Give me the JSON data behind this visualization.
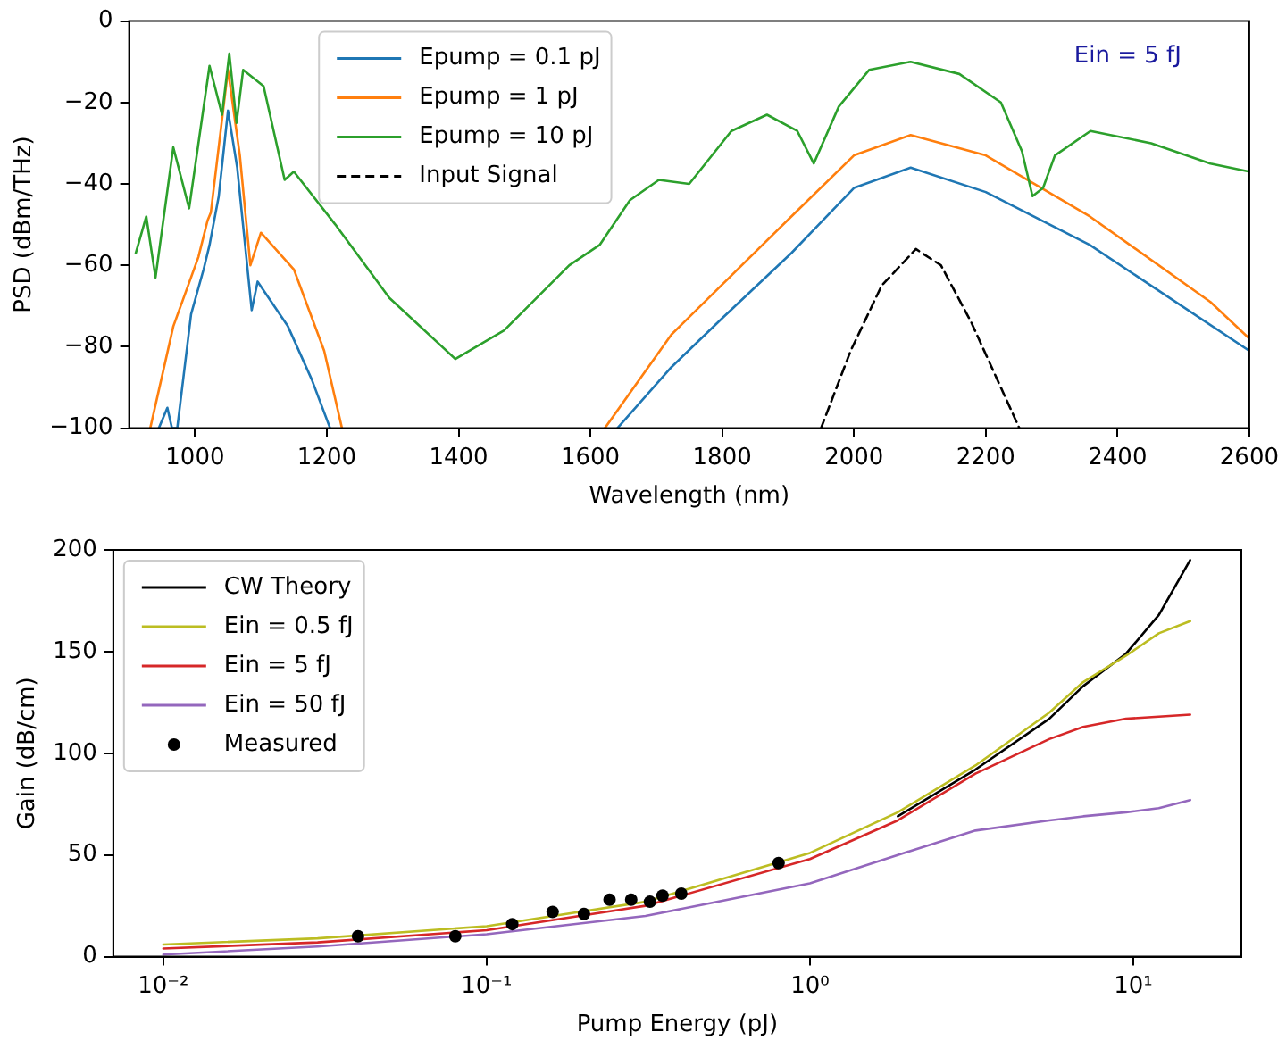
{
  "chart_data": [
    {
      "type": "line",
      "xlabel": "Wavelength (nm)",
      "ylabel": "PSD (dBm/THz)",
      "xlim": [
        900,
        2600
      ],
      "xticks": [
        1000,
        1200,
        1400,
        1600,
        1800,
        2000,
        2200,
        2400,
        2600
      ],
      "ylim": [
        -100,
        0
      ],
      "yticks": [
        -100,
        -80,
        -60,
        -40,
        -20,
        0
      ],
      "legend": "top",
      "annotations": [
        "Ein = 5 fJ"
      ],
      "series": [
        {
          "name": "Epump = 0.1 pJ",
          "color": "#1f77b4",
          "x": [
            945,
            958,
            965,
            973,
            994,
            1013,
            1022,
            1036,
            1050,
            1064,
            1086,
            1095,
            1141,
            1177,
            1205,
            1400,
            1641,
            1723,
            1800,
            1905,
            2000,
            2086,
            2200,
            2358,
            2600
          ],
          "values": [
            -100,
            -95,
            -100,
            -100,
            -72,
            -61,
            -55,
            -43,
            -22,
            -36,
            -71,
            -64,
            -75,
            -88,
            -100,
            null,
            -100,
            -85,
            -73,
            -57,
            -41,
            -36,
            -42,
            -55,
            -81
          ]
        },
        {
          "name": "Epump = 1 pJ",
          "color": "#ff7f0e",
          "x": [
            932,
            967,
            1005,
            1019,
            1024,
            1050,
            1068,
            1084,
            1100,
            1150,
            1196,
            1223,
            1400,
            1622,
            1723,
            1905,
            2000,
            2086,
            2200,
            2358,
            2541,
            2600
          ],
          "values": [
            -100,
            -75,
            -58,
            -49,
            -47,
            -12,
            -33,
            -60,
            -52,
            -61,
            -81,
            -100,
            null,
            -100,
            -77,
            -48,
            -33,
            -28,
            -33,
            -48,
            -69,
            -78
          ]
        },
        {
          "name": "Epump = 10 pJ",
          "color": "#2ca02c",
          "x": [
            910,
            926,
            940,
            967,
            991,
            1022,
            1041,
            1052,
            1063,
            1073,
            1104,
            1136,
            1150,
            1213,
            1295,
            1395,
            1469,
            1568,
            1614,
            1660,
            1704,
            1750,
            1814,
            1868,
            1914,
            1939,
            1977,
            2023,
            2086,
            2160,
            2223,
            2255,
            2271,
            2287,
            2305,
            2359,
            2451,
            2541,
            2600
          ],
          "values": [
            -57,
            -48,
            -63,
            -31,
            -46,
            -11,
            -23,
            -8,
            -25,
            -12,
            -16,
            -39,
            -37,
            -50,
            -68,
            -83,
            -76,
            -60,
            -55,
            -44,
            -39,
            -40,
            -27,
            -23,
            -27,
            -35,
            -21,
            -12,
            -10,
            -13,
            -20,
            -32,
            -43,
            -41,
            -33,
            -27,
            -30,
            -35,
            -37
          ]
        },
        {
          "name": "Input Signal",
          "color": "#000000",
          "line_style": "dashed",
          "x": [
            1950,
            1995,
            2042,
            2094,
            2132,
            2178,
            2251
          ],
          "values": [
            -100,
            -81,
            -65,
            -56,
            -60,
            -74,
            -100
          ]
        }
      ]
    },
    {
      "type": "line",
      "xlabel": "Pump Energy (pJ)",
      "ylabel": "Gain (dB/cm)",
      "log": "x",
      "xlim": [
        0.007,
        21.6
      ],
      "xticks": [
        {
          "value": 0.01,
          "label": "10⁻²"
        },
        {
          "value": 0.1,
          "label": "10⁻¹"
        },
        {
          "value": 1,
          "label": "10⁰"
        },
        {
          "value": 10,
          "label": "10¹"
        }
      ],
      "ylim": [
        0,
        200
      ],
      "yticks": [
        0,
        50,
        100,
        150,
        200
      ],
      "legend": "top left",
      "series": [
        {
          "name": "CW Theory",
          "color": "#000000",
          "x": [
            1.87,
            3.25,
            5.5,
            7,
            9.5,
            12,
            15
          ],
          "values": [
            69,
            92,
            117,
            133,
            149,
            168,
            195
          ]
        },
        {
          "name": "Ein = 0.5 fJ",
          "color": "#bcbd22",
          "x": [
            0.01,
            0.03,
            0.1,
            0.31,
            1,
            1.87,
            3.25,
            5.5,
            7,
            9.5,
            12,
            15
          ],
          "values": [
            6,
            9,
            15,
            27,
            51,
            71,
            94,
            120,
            135,
            148,
            159,
            165
          ]
        },
        {
          "name": "Ein = 5 fJ",
          "color": "#d62728",
          "x": [
            0.01,
            0.03,
            0.1,
            0.31,
            1,
            1.87,
            3.25,
            5.5,
            7,
            9.5,
            12,
            15
          ],
          "values": [
            4,
            7,
            13,
            25,
            48,
            67,
            90,
            107,
            113,
            117,
            118,
            119
          ]
        },
        {
          "name": "Ein = 50 fJ",
          "color": "#9467bd",
          "x": [
            0.01,
            0.03,
            0.1,
            0.31,
            1,
            1.87,
            3.25,
            5.5,
            7,
            9.5,
            12,
            15
          ],
          "values": [
            1,
            5,
            11,
            20,
            36,
            50,
            62,
            67,
            69,
            71,
            73,
            77
          ]
        },
        {
          "name": "Measured",
          "type": "scatter",
          "marker": "circle",
          "color": "#000000",
          "x": [
            0.04,
            0.08,
            0.12,
            0.16,
            0.2,
            0.24,
            0.28,
            0.32,
            0.35,
            0.4,
            0.8
          ],
          "values": [
            10,
            10,
            16,
            22,
            21,
            28,
            28,
            27,
            30,
            31,
            46
          ]
        }
      ]
    }
  ]
}
